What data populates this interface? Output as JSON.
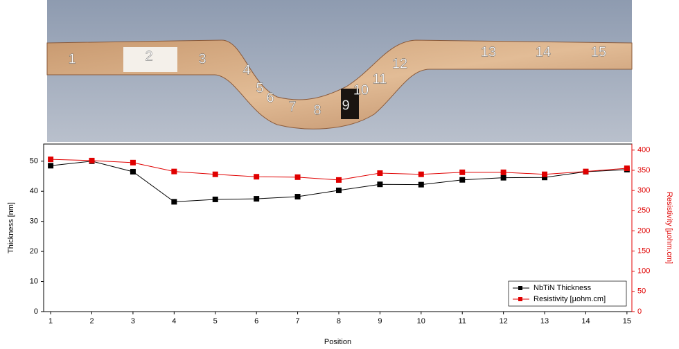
{
  "photo": {
    "labels": [
      "1",
      "2",
      "3",
      "4",
      "5",
      "6",
      "7",
      "8",
      "9",
      "10",
      "11",
      "12",
      "13",
      "14",
      "15"
    ]
  },
  "chart_data": {
    "type": "line",
    "x_label": "Position",
    "y_label": "Thickness [nm]",
    "y2_label": "Resistivity [µohm.cm]",
    "x": [
      1,
      2,
      3,
      4,
      5,
      6,
      7,
      8,
      9,
      10,
      11,
      12,
      13,
      14,
      15
    ],
    "xlim": [
      0.83,
      15.12
    ],
    "xticks": [
      1,
      2,
      3,
      4,
      5,
      6,
      7,
      8,
      9,
      10,
      11,
      12,
      13,
      14,
      15
    ],
    "ylim": [
      0,
      55.7
    ],
    "yticks": [
      0,
      10,
      20,
      30,
      40,
      50
    ],
    "y2lim": [
      0,
      415
    ],
    "y2ticks": [
      0,
      50,
      100,
      150,
      200,
      250,
      300,
      350,
      400
    ],
    "legend": "lower right",
    "series": [
      {
        "name": "NbTiN Thickness",
        "color": "#000000",
        "values": [
          48.5,
          50,
          46.5,
          36.5,
          37.3,
          37.5,
          38.2,
          40.3,
          42.3,
          42.2,
          43.8,
          44.5,
          44.6,
          46.5,
          47.2
        ]
      },
      {
        "name": "Resistivity [µohm.cm]",
        "color": "#e00000",
        "axis": "y2",
        "values": [
          377,
          374,
          369,
          347,
          340,
          334,
          333,
          326,
          343,
          340,
          345,
          345,
          340,
          347,
          355
        ]
      }
    ]
  }
}
